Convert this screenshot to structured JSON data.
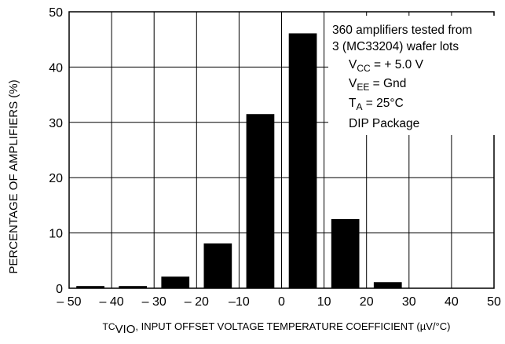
{
  "chart_data": {
    "type": "bar",
    "title": "",
    "xlabel": {
      "symbol": "TC",
      "symbol_sub": "VIO",
      "text": ", INPUT OFFSET VOLTAGE TEMPERATURE COEFFICIENT (µV/°C)"
    },
    "ylabel": "PERCENTAGE OF AMPLIFIERS (%)",
    "xlim": [
      -50,
      50
    ],
    "ylim": [
      0,
      50
    ],
    "x_ticks": [
      -50,
      -40,
      -30,
      -20,
      -10,
      0,
      10,
      20,
      30,
      40,
      50
    ],
    "x_tick_labels": [
      "– 50",
      "– 40",
      "– 30",
      "– 20",
      "–10",
      "0",
      "10",
      "20",
      "30",
      "40",
      "50"
    ],
    "y_ticks": [
      0,
      10,
      20,
      30,
      40,
      50
    ],
    "y_tick_labels": [
      "0",
      "10",
      "20",
      "30",
      "40",
      "50"
    ],
    "grid": true,
    "categories": [
      "–45",
      "–35",
      "–25",
      "–15",
      "–5",
      "5",
      "15",
      "25",
      "35",
      "45"
    ],
    "bin_centers": [
      -45,
      -35,
      -25,
      -15,
      -5,
      5,
      15,
      25,
      35,
      45
    ],
    "bin_width": 10,
    "values": [
      0.4,
      0.4,
      2.1,
      8.1,
      31.5,
      46.1,
      12.5,
      1.1,
      0,
      0
    ],
    "annotation": {
      "line1": "360 amplifiers tested from",
      "line2": "3 (MC33204) wafer lots",
      "vcc": {
        "sym": "V",
        "sub": "CC",
        "text": " = + 5.0 V"
      },
      "vee": {
        "sym": "V",
        "sub": "EE",
        "text": " = Gnd"
      },
      "ta": {
        "sym": "T",
        "sub": "A",
        "text": " = 25°C"
      },
      "pkg": "DIP Package"
    }
  }
}
